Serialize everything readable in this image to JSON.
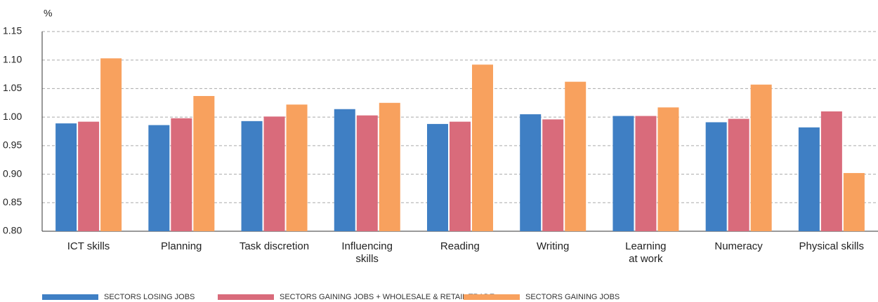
{
  "chart_data": {
    "type": "bar",
    "y_label": "%",
    "categories": [
      "ICT skills",
      "Planning",
      "Task discretion",
      "Influencing\nskills",
      "Reading",
      "Writing",
      "Learning\nat work",
      "Numeracy",
      "Physical skills"
    ],
    "series": [
      {
        "name": "SECTORS LOSING JOBS",
        "color": "#3f7fc4",
        "values": [
          0.989,
          0.986,
          0.993,
          1.014,
          0.988,
          1.005,
          1.002,
          0.991,
          0.982
        ]
      },
      {
        "name": "SECTORS GAINING JOBS + WHOLESALE & RETAIL TRADE",
        "color": "#d96b7b",
        "values": [
          0.992,
          0.998,
          1.001,
          1.003,
          0.992,
          0.996,
          1.002,
          0.997,
          1.01
        ]
      },
      {
        "name": "SECTORS GAINING JOBS",
        "color": "#f8a15e",
        "values": [
          1.103,
          1.037,
          1.022,
          1.025,
          1.092,
          1.062,
          1.017,
          1.057,
          0.902
        ]
      }
    ],
    "ylim": [
      0.8,
      1.15
    ],
    "yticks": [
      {
        "value": 0.8,
        "label": "0.80"
      },
      0.85,
      {
        "value": 0.9,
        "label": "0.90"
      },
      0.95,
      {
        "value": 1.0,
        "label": "1.00"
      },
      1.05,
      {
        "value": 1.1,
        "label": "1.10"
      },
      1.15
    ],
    "grid": true,
    "legend": "bottom"
  }
}
